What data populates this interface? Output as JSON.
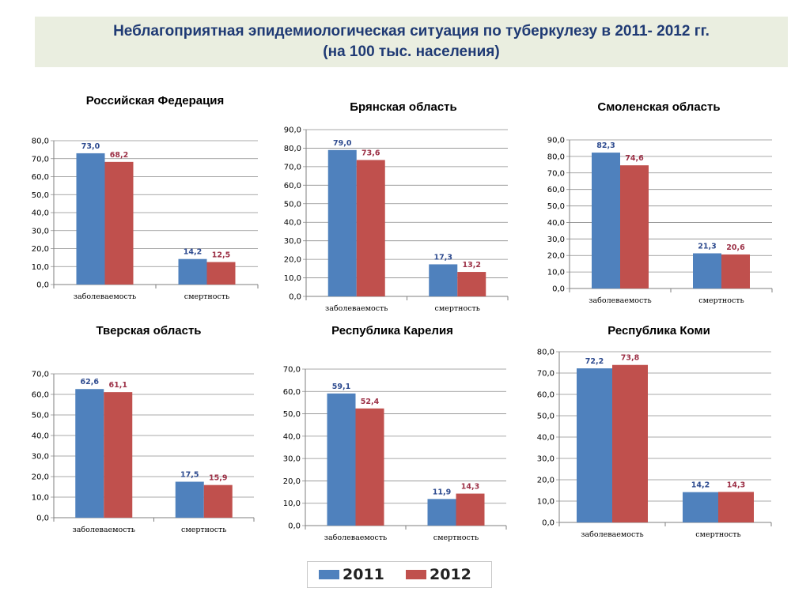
{
  "header": {
    "line1": "Неблагоприятная  эпидемиологическая ситуация по туберкулезу  в 2011- 2012 гг.",
    "line2": "(на 100 тыс. населения)"
  },
  "colors": {
    "2011": "#4f81bd",
    "2012": "#c0504d",
    "grid": "#8c8c8c"
  },
  "legend": [
    {
      "label": "2011",
      "color": "#4f81bd"
    },
    {
      "label": "2012",
      "color": "#c0504d"
    }
  ],
  "chart_data": [
    {
      "type": "bar",
      "title": "Российская Федерация",
      "categories": [
        "заболеваемость",
        "смертность"
      ],
      "series": [
        {
          "name": "2011",
          "values": [
            73.0,
            14.2
          ],
          "labels": [
            "73,0",
            "14,2"
          ]
        },
        {
          "name": "2012",
          "values": [
            68.2,
            12.5
          ],
          "labels": [
            "68,2",
            "12,5"
          ]
        }
      ],
      "ylim": [
        0,
        80
      ],
      "yticks": [
        "0,0",
        "10,0",
        "20,0",
        "30,0",
        "40,0",
        "50,0",
        "60,0",
        "70,0",
        "80,0"
      ],
      "grid": true
    },
    {
      "type": "bar",
      "title": "Брянская область",
      "categories": [
        "заболеваемость",
        "смертность"
      ],
      "series": [
        {
          "name": "2011",
          "values": [
            79.0,
            17.3
          ],
          "labels": [
            "79,0",
            "17,3"
          ]
        },
        {
          "name": "2012",
          "values": [
            73.6,
            13.2
          ],
          "labels": [
            "73,6",
            "13,2"
          ]
        }
      ],
      "ylim": [
        0,
        90
      ],
      "yticks": [
        "0,0",
        "10,0",
        "20,0",
        "30,0",
        "40,0",
        "50,0",
        "60,0",
        "70,0",
        "80,0",
        "90,0"
      ],
      "grid": true
    },
    {
      "type": "bar",
      "title": "Смоленская область",
      "categories": [
        "заболеваемость",
        "смертность"
      ],
      "series": [
        {
          "name": "2011",
          "values": [
            82.3,
            21.3
          ],
          "labels": [
            "82,3",
            "21,3"
          ]
        },
        {
          "name": "2012",
          "values": [
            74.6,
            20.6
          ],
          "labels": [
            "74,6",
            "20,6"
          ]
        }
      ],
      "ylim": [
        0,
        90
      ],
      "yticks": [
        "0,0",
        "10,0",
        "20,0",
        "30,0",
        "40,0",
        "50,0",
        "60,0",
        "70,0",
        "80,0",
        "90,0"
      ],
      "grid": true
    },
    {
      "type": "bar",
      "title": "Тверская область",
      "categories": [
        "заболеваемость",
        "смертность"
      ],
      "series": [
        {
          "name": "2011",
          "values": [
            62.6,
            17.5
          ],
          "labels": [
            "62,6",
            "17,5"
          ]
        },
        {
          "name": "2012",
          "values": [
            61.1,
            15.9
          ],
          "labels": [
            "61,1",
            "15,9"
          ]
        }
      ],
      "ylim": [
        0,
        70
      ],
      "yticks": [
        "0,0",
        "10,0",
        "20,0",
        "30,0",
        "40,0",
        "50,0",
        "60,0",
        "70,0"
      ],
      "grid": true
    },
    {
      "type": "bar",
      "title": "Республика Карелия",
      "categories": [
        "заболеваемость",
        "смертность"
      ],
      "series": [
        {
          "name": "2011",
          "values": [
            59.1,
            11.9
          ],
          "labels": [
            "59,1",
            "11,9"
          ]
        },
        {
          "name": "2012",
          "values": [
            52.4,
            14.3
          ],
          "labels": [
            "52,4",
            "14,3"
          ]
        }
      ],
      "ylim": [
        0,
        70
      ],
      "yticks": [
        "0,0",
        "10,0",
        "20,0",
        "30,0",
        "40,0",
        "50,0",
        "60,0",
        "70,0"
      ],
      "grid": true
    },
    {
      "type": "bar",
      "title": "Республика Коми",
      "categories": [
        "заболеваемость",
        "смертность"
      ],
      "series": [
        {
          "name": "2011",
          "values": [
            72.2,
            14.2
          ],
          "labels": [
            "72,2",
            "14,2"
          ]
        },
        {
          "name": "2012",
          "values": [
            73.8,
            14.3
          ],
          "labels": [
            "73,8",
            "14,3"
          ]
        }
      ],
      "ylim": [
        0,
        80
      ],
      "yticks": [
        "0,0",
        "10,0",
        "20,0",
        "30,0",
        "40,0",
        "50,0",
        "60,0",
        "70,0",
        "80,0"
      ],
      "grid": true
    }
  ]
}
